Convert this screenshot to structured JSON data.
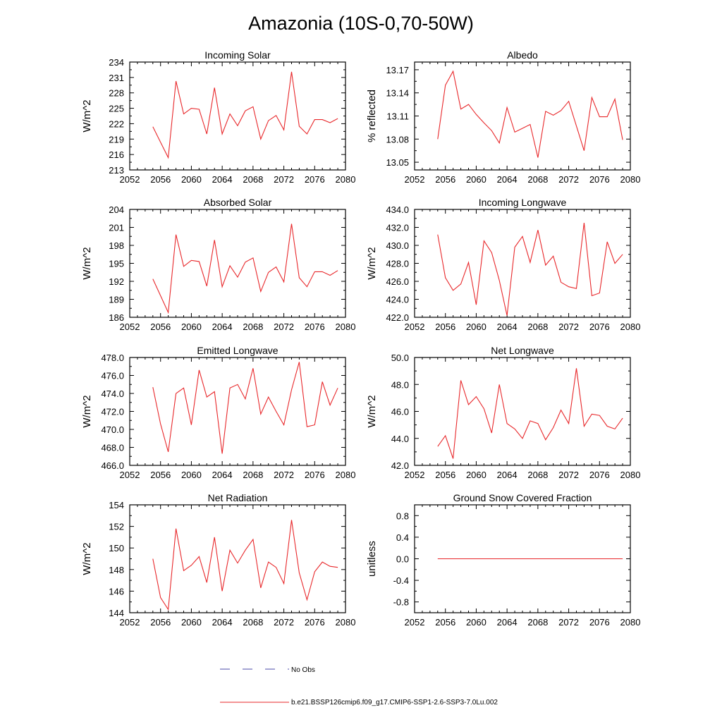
{
  "page": {
    "title": "Amazonia (10S-0,70-50W)",
    "legend": [
      {
        "label": "No Obs",
        "color": "#4a4aa8",
        "style": "dashed"
      },
      {
        "label": "b.e21.BSSP126cmip6.f09_g17.CMIP6-SSP1-2.6-SSP3-7.0Lu.002",
        "color": "#e8282b",
        "style": "solid"
      }
    ]
  },
  "chart_data": [
    {
      "type": "line",
      "title": "Incoming Solar",
      "ylabel": "W/m^2",
      "xlim": [
        2052,
        2080
      ],
      "ylim": [
        213,
        234
      ],
      "xticks": [
        2052,
        2056,
        2060,
        2064,
        2068,
        2072,
        2076,
        2080
      ],
      "yticks": [
        213,
        216,
        219,
        222,
        225,
        228,
        231,
        234
      ],
      "ytick_labels": [
        "213",
        "216",
        "219",
        "222",
        "225",
        "228",
        "231",
        "234"
      ],
      "series": [
        {
          "color": "#e8282b",
          "x": [
            2055,
            2056,
            2057,
            2058,
            2059,
            2060,
            2061,
            2062,
            2063,
            2064,
            2065,
            2066,
            2067,
            2068,
            2069,
            2070,
            2071,
            2072,
            2073,
            2074,
            2075,
            2076,
            2077,
            2078,
            2079
          ],
          "y": [
            221.4,
            218.4,
            215.4,
            230.3,
            223.9,
            225.0,
            224.8,
            220.0,
            229.0,
            220.0,
            223.9,
            221.6,
            224.5,
            225.3,
            219.0,
            222.6,
            223.6,
            220.8,
            232.1,
            221.5,
            220.0,
            222.8,
            222.8,
            222.2,
            223.0
          ]
        }
      ]
    },
    {
      "type": "line",
      "title": "Albedo",
      "ylabel": "% reflected",
      "xlim": [
        2052,
        2080
      ],
      "ylim": [
        13.04,
        13.18
      ],
      "xticks": [
        2052,
        2056,
        2060,
        2064,
        2068,
        2072,
        2076,
        2080
      ],
      "yticks": [
        13.05,
        13.08,
        13.11,
        13.14,
        13.17
      ],
      "ytick_labels": [
        "13.05",
        "13.08",
        "13.11",
        "13.14",
        "13.17"
      ],
      "series": [
        {
          "color": "#e8282b",
          "x": [
            2055,
            2056,
            2057,
            2058,
            2059,
            2060,
            2061,
            2062,
            2063,
            2064,
            2065,
            2066,
            2067,
            2068,
            2069,
            2070,
            2071,
            2072,
            2073,
            2074,
            2075,
            2076,
            2077,
            2078,
            2079
          ],
          "y": [
            13.08,
            13.15,
            13.168,
            13.119,
            13.125,
            13.112,
            13.101,
            13.091,
            13.075,
            13.121,
            13.089,
            13.094,
            13.099,
            13.056,
            13.116,
            13.111,
            13.117,
            13.129,
            13.097,
            13.065,
            13.134,
            13.109,
            13.109,
            13.132,
            13.079
          ]
        }
      ]
    },
    {
      "type": "line",
      "title": "Absorbed Solar",
      "ylabel": "W/m^2",
      "xlim": [
        2052,
        2080
      ],
      "ylim": [
        186,
        204
      ],
      "xticks": [
        2052,
        2056,
        2060,
        2064,
        2068,
        2072,
        2076,
        2080
      ],
      "yticks": [
        186,
        189,
        192,
        195,
        198,
        201,
        204
      ],
      "ytick_labels": [
        "186",
        "189",
        "192",
        "195",
        "198",
        "201",
        "204"
      ],
      "series": [
        {
          "color": "#e8282b",
          "x": [
            2055,
            2056,
            2057,
            2058,
            2059,
            2060,
            2061,
            2062,
            2063,
            2064,
            2065,
            2066,
            2067,
            2068,
            2069,
            2070,
            2071,
            2072,
            2073,
            2074,
            2075,
            2076,
            2077,
            2078,
            2079
          ],
          "y": [
            192.4,
            189.6,
            186.8,
            199.8,
            194.5,
            195.5,
            195.3,
            191.2,
            198.9,
            191.1,
            194.6,
            192.7,
            195.2,
            195.9,
            190.3,
            193.5,
            194.4,
            191.9,
            201.6,
            192.6,
            191.1,
            193.6,
            193.6,
            193.0,
            193.8
          ]
        }
      ]
    },
    {
      "type": "line",
      "title": "Incoming Longwave",
      "ylabel": "W/m^2",
      "xlim": [
        2052,
        2080
      ],
      "ylim": [
        422.0,
        434.0
      ],
      "xticks": [
        2052,
        2056,
        2060,
        2064,
        2068,
        2072,
        2076,
        2080
      ],
      "yticks": [
        422,
        424,
        426,
        428,
        430,
        432,
        434
      ],
      "ytick_labels": [
        "422.0",
        "424.0",
        "426.0",
        "428.0",
        "430.0",
        "432.0",
        "434.0"
      ],
      "series": [
        {
          "color": "#e8282b",
          "x": [
            2055,
            2056,
            2057,
            2058,
            2059,
            2060,
            2061,
            2062,
            2063,
            2064,
            2065,
            2066,
            2067,
            2068,
            2069,
            2070,
            2071,
            2072,
            2073,
            2074,
            2075,
            2076,
            2077,
            2078,
            2079
          ],
          "y": [
            431.2,
            426.4,
            425.0,
            425.7,
            428.1,
            423.4,
            430.5,
            429.2,
            426.1,
            422.2,
            429.8,
            431.0,
            428.1,
            431.7,
            427.8,
            428.8,
            425.9,
            425.4,
            425.2,
            432.5,
            424.4,
            424.7,
            430.4,
            428.0,
            429.0
          ]
        }
      ]
    },
    {
      "type": "line",
      "title": "Emitted Longwave",
      "ylabel": "W/m^2",
      "xlim": [
        2052,
        2080
      ],
      "ylim": [
        466.0,
        478.0
      ],
      "xticks": [
        2052,
        2056,
        2060,
        2064,
        2068,
        2072,
        2076,
        2080
      ],
      "yticks": [
        466,
        468,
        470,
        472,
        474,
        476,
        478
      ],
      "ytick_labels": [
        "466.0",
        "468.0",
        "470.0",
        "472.0",
        "474.0",
        "476.0",
        "478.0"
      ],
      "series": [
        {
          "color": "#e8282b",
          "x": [
            2055,
            2056,
            2057,
            2058,
            2059,
            2060,
            2061,
            2062,
            2063,
            2064,
            2065,
            2066,
            2067,
            2068,
            2069,
            2070,
            2071,
            2072,
            2073,
            2074,
            2075,
            2076,
            2077,
            2078,
            2079
          ],
          "y": [
            474.7,
            470.6,
            467.5,
            474.0,
            474.6,
            470.5,
            476.6,
            473.6,
            474.2,
            467.3,
            474.6,
            475.0,
            473.4,
            476.8,
            471.7,
            473.6,
            472.0,
            470.5,
            474.4,
            477.5,
            470.3,
            470.5,
            475.3,
            472.7,
            474.6
          ]
        }
      ]
    },
    {
      "type": "line",
      "title": "Net Longwave",
      "ylabel": "W/m^2",
      "xlim": [
        2052,
        2080
      ],
      "ylim": [
        42.0,
        50.0
      ],
      "xticks": [
        2052,
        2056,
        2060,
        2064,
        2068,
        2072,
        2076,
        2080
      ],
      "yticks": [
        42,
        44,
        46,
        48,
        50
      ],
      "ytick_labels": [
        "42.0",
        "44.0",
        "46.0",
        "48.0",
        "50.0"
      ],
      "series": [
        {
          "color": "#e8282b",
          "x": [
            2055,
            2056,
            2057,
            2058,
            2059,
            2060,
            2061,
            2062,
            2063,
            2064,
            2065,
            2066,
            2067,
            2068,
            2069,
            2070,
            2071,
            2072,
            2073,
            2074,
            2075,
            2076,
            2077,
            2078,
            2079
          ],
          "y": [
            43.4,
            44.2,
            42.5,
            48.3,
            46.5,
            47.1,
            46.2,
            44.4,
            48.0,
            45.1,
            44.7,
            44.0,
            45.3,
            45.1,
            43.9,
            44.8,
            46.1,
            45.1,
            49.2,
            44.9,
            45.8,
            45.7,
            44.9,
            44.7,
            45.5
          ]
        }
      ]
    },
    {
      "type": "line",
      "title": "Net Radiation",
      "ylabel": "W/m^2",
      "xlim": [
        2052,
        2080
      ],
      "ylim": [
        144,
        154
      ],
      "xticks": [
        2052,
        2056,
        2060,
        2064,
        2068,
        2072,
        2076,
        2080
      ],
      "yticks": [
        144,
        146,
        148,
        150,
        152,
        154
      ],
      "ytick_labels": [
        "144",
        "146",
        "148",
        "150",
        "152",
        "154"
      ],
      "series": [
        {
          "color": "#e8282b",
          "x": [
            2055,
            2056,
            2057,
            2058,
            2059,
            2060,
            2061,
            2062,
            2063,
            2064,
            2065,
            2066,
            2067,
            2068,
            2069,
            2070,
            2071,
            2072,
            2073,
            2074,
            2075,
            2076,
            2077,
            2078,
            2079
          ],
          "y": [
            149.0,
            145.4,
            144.3,
            151.8,
            147.9,
            148.4,
            149.2,
            146.8,
            151.0,
            146.0,
            149.8,
            148.6,
            149.8,
            150.8,
            146.3,
            148.7,
            148.2,
            146.7,
            152.6,
            147.7,
            145.2,
            147.8,
            148.7,
            148.3,
            148.2
          ]
        }
      ]
    },
    {
      "type": "line",
      "title": "Ground Snow Covered Fraction",
      "ylabel": "unitless",
      "xlim": [
        2052,
        2080
      ],
      "ylim": [
        -1.0,
        1.0
      ],
      "xticks": [
        2052,
        2056,
        2060,
        2064,
        2068,
        2072,
        2076,
        2080
      ],
      "yticks": [
        -0.8,
        -0.4,
        0.0,
        0.4,
        0.8
      ],
      "ytick_labels": [
        "-0.8",
        "-0.4",
        "0.0",
        "0.4",
        "0.8"
      ],
      "series": [
        {
          "color": "#e8282b",
          "x": [
            2055,
            2056,
            2057,
            2058,
            2059,
            2060,
            2061,
            2062,
            2063,
            2064,
            2065,
            2066,
            2067,
            2068,
            2069,
            2070,
            2071,
            2072,
            2073,
            2074,
            2075,
            2076,
            2077,
            2078,
            2079
          ],
          "y": [
            0,
            0,
            0,
            0,
            0,
            0,
            0,
            0,
            0,
            0,
            0,
            0,
            0,
            0,
            0,
            0,
            0,
            0,
            0,
            0,
            0,
            0,
            0,
            0,
            0
          ]
        }
      ]
    }
  ]
}
